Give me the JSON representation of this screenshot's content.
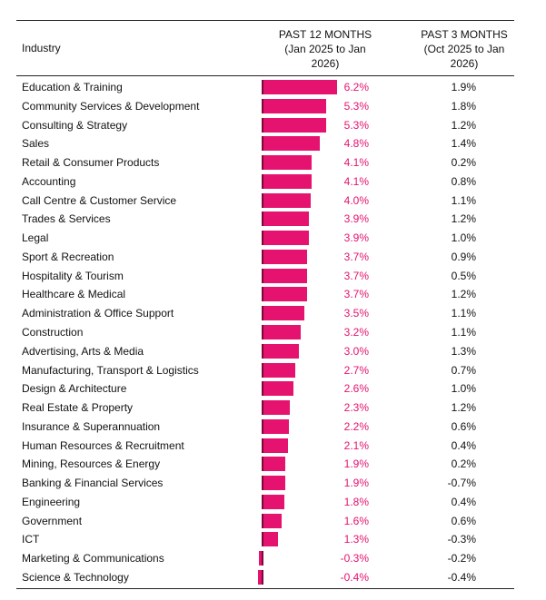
{
  "chart_data": {
    "type": "bar",
    "orientation": "horizontal",
    "category_label": "Industry",
    "categories": [
      "Education & Training",
      "Community Services & Development",
      "Consulting & Strategy",
      "Sales",
      "Retail & Consumer Products",
      "Accounting",
      "Call Centre & Customer Service",
      "Trades & Services",
      "Legal",
      "Sport & Recreation",
      "Hospitality & Tourism",
      "Healthcare & Medical",
      "Administration & Office Support",
      "Construction",
      "Advertising, Arts & Media",
      "Manufacturing, Transport & Logistics",
      "Design & Architecture",
      "Real Estate & Property",
      "Insurance & Superannuation",
      "Human Resources & Recruitment",
      "Mining, Resources & Energy",
      "Banking & Financial Services",
      "Engineering",
      "Government",
      "ICT",
      "Marketing & Communications",
      "Science & Technology"
    ],
    "series": [
      {
        "name": "PAST 12 MONTHS (Jan 2025 to Jan 2026)",
        "color": "#e5126f",
        "drawn_as": "bar",
        "values": [
          6.2,
          5.3,
          5.3,
          4.8,
          4.1,
          4.1,
          4,
          3.9,
          3.9,
          3.7,
          3.7,
          3.7,
          3.5,
          3.2,
          3,
          2.7,
          2.6,
          2.3,
          2.2,
          2.1,
          1.9,
          1.9,
          1.8,
          1.6,
          1.3,
          -0.3,
          -0.4
        ],
        "value_labels": [
          "6.2%",
          "5.3%",
          "5.3%",
          "4.8%",
          "4.1%",
          "4.1%",
          "4.0%",
          "3.9%",
          "3.9%",
          "3.7%",
          "3.7%",
          "3.7%",
          "3.5%",
          "3.2%",
          "3.0%",
          "2.7%",
          "2.6%",
          "2.3%",
          "2.2%",
          "2.1%",
          "1.9%",
          "1.9%",
          "1.8%",
          "1.6%",
          "1.3%",
          "-0.3%",
          "-0.4%"
        ]
      },
      {
        "name": "PAST 3 MONTHS (Oct 2025 to Jan 2026)",
        "color": "#111111",
        "drawn_as": "text",
        "values": [
          1.9,
          1.8,
          1.2,
          1.4,
          0.2,
          0.8,
          1.1,
          1.2,
          1,
          0.9,
          0.5,
          1.2,
          1.1,
          1.1,
          1.3,
          0.7,
          1,
          1.2,
          0.6,
          0.4,
          0.2,
          -0.7,
          0.4,
          0.6,
          -0.3,
          -0.2,
          -0.4
        ],
        "value_labels": [
          "1.9%",
          "1.8%",
          "1.2%",
          "1.4%",
          "0.2%",
          "0.8%",
          "1.1%",
          "1.2%",
          "1.0%",
          "0.9%",
          "0.5%",
          "1.2%",
          "1.1%",
          "1.1%",
          "1.3%",
          "0.7%",
          "1.0%",
          "1.2%",
          "0.6%",
          "0.4%",
          "0.2%",
          "-0.7%",
          "0.4%",
          "0.6%",
          "-0.3%",
          "-0.2%",
          "-0.4%"
        ]
      }
    ]
  }
}
